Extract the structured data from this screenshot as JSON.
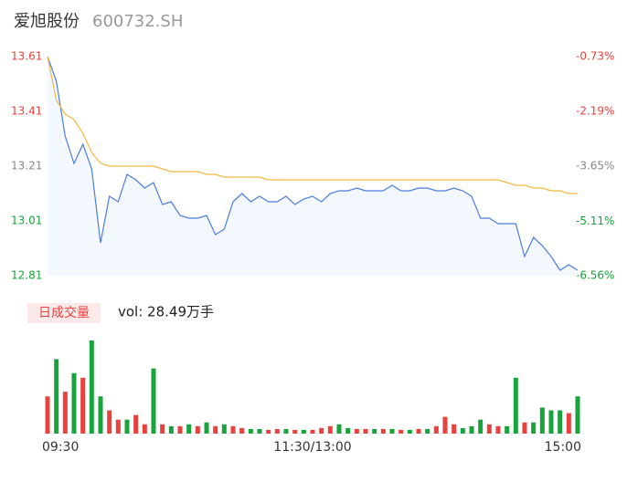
{
  "chart_data": {
    "type": "line",
    "title": "爱旭股份",
    "subtitle": "600732.SH",
    "x": [
      0,
      4,
      8,
      12,
      16,
      20,
      24,
      28,
      32,
      36,
      40,
      44,
      48,
      52,
      56,
      60,
      64,
      68,
      72,
      76,
      80,
      84,
      88,
      92,
      96,
      100,
      104,
      108,
      112,
      116,
      120,
      124,
      128,
      132,
      136,
      140,
      144,
      148,
      152,
      156,
      160,
      164,
      168,
      172,
      176,
      180,
      184,
      188,
      192,
      196,
      200,
      204,
      208,
      212,
      216,
      220,
      224,
      228,
      232,
      236,
      240
    ],
    "xlim": [
      0,
      240
    ],
    "xticks": [
      {
        "value": 0,
        "label": "09:30"
      },
      {
        "value": 120,
        "label": "11:30/13:00"
      },
      {
        "value": 240,
        "label": "15:00"
      }
    ],
    "ylim": [
      12.81,
      13.61
    ],
    "yticks": [
      12.81,
      13.01,
      13.21,
      13.41,
      13.61
    ],
    "ytick_colors": [
      "#18a33c",
      "#18a33c",
      "#888888",
      "#e8423f",
      "#e8423f"
    ],
    "y2lim": [
      -6.56,
      -0.73
    ],
    "y2ticks": [
      {
        "value": -6.56,
        "label": "-6.56%"
      },
      {
        "value": -5.11,
        "label": "-5.11%"
      },
      {
        "value": -3.65,
        "label": "-3.65%"
      },
      {
        "value": -2.19,
        "label": "-2.19%"
      },
      {
        "value": -0.73,
        "label": "-0.73%"
      }
    ],
    "series": [
      {
        "color": "#4a7ee0",
        "values": [
          13.61,
          13.52,
          13.32,
          13.22,
          13.29,
          13.2,
          12.93,
          13.1,
          13.08,
          13.18,
          13.16,
          13.13,
          13.15,
          13.07,
          13.08,
          13.03,
          13.02,
          13.02,
          13.03,
          12.96,
          12.98,
          13.08,
          13.11,
          13.08,
          13.1,
          13.08,
          13.08,
          13.1,
          13.07,
          13.09,
          13.1,
          13.08,
          13.11,
          13.12,
          13.12,
          13.13,
          13.12,
          13.12,
          13.12,
          13.14,
          13.12,
          13.12,
          13.13,
          13.13,
          13.12,
          13.12,
          13.13,
          13.12,
          13.1,
          13.02,
          13.02,
          13.0,
          13.0,
          13.0,
          12.88,
          12.95,
          12.92,
          12.88,
          12.83,
          12.85,
          12.83
        ]
      },
      {
        "color": "#f5b942",
        "values": [
          13.61,
          13.45,
          13.4,
          13.38,
          13.33,
          13.26,
          13.22,
          13.21,
          13.21,
          13.21,
          13.21,
          13.21,
          13.21,
          13.2,
          13.19,
          13.19,
          13.19,
          13.19,
          13.18,
          13.18,
          13.17,
          13.17,
          13.17,
          13.17,
          13.17,
          13.16,
          13.16,
          13.16,
          13.16,
          13.16,
          13.16,
          13.16,
          13.16,
          13.16,
          13.16,
          13.16,
          13.16,
          13.16,
          13.16,
          13.16,
          13.16,
          13.16,
          13.16,
          13.16,
          13.16,
          13.16,
          13.16,
          13.16,
          13.16,
          13.16,
          13.16,
          13.16,
          13.15,
          13.14,
          13.14,
          13.13,
          13.13,
          13.12,
          13.12,
          13.11,
          13.11
        ]
      }
    ],
    "volume": {
      "label": "日成交量",
      "summary": "vol: 28.49万手",
      "ylim": [
        0,
        100
      ],
      "values": [
        40,
        80,
        45,
        65,
        60,
        100,
        40,
        25,
        15,
        15,
        20,
        10,
        70,
        10,
        8,
        8,
        10,
        8,
        12,
        8,
        10,
        8,
        6,
        5,
        5,
        4,
        5,
        5,
        4,
        4,
        4,
        6,
        8,
        10,
        6,
        5,
        5,
        5,
        5,
        5,
        4,
        4,
        5,
        5,
        8,
        18,
        10,
        6,
        8,
        15,
        10,
        8,
        8,
        60,
        12,
        12,
        28,
        25,
        25,
        22,
        40
      ],
      "colors": [
        "#e8423f",
        "#18a33c",
        "#e8423f",
        "#18a33c",
        "#e8423f",
        "#18a33c",
        "#18a33c",
        "#e8423f",
        "#e8423f",
        "#18a33c",
        "#e8423f",
        "#e8423f",
        "#18a33c",
        "#e8423f",
        "#18a33c",
        "#e8423f",
        "#18a33c",
        "#e8423f",
        "#18a33c",
        "#e8423f",
        "#18a33c",
        "#e8423f",
        "#e8423f",
        "#18a33c",
        "#18a33c",
        "#e8423f",
        "#e8423f",
        "#18a33c",
        "#e8423f",
        "#18a33c",
        "#e8423f",
        "#e8423f",
        "#e8423f",
        "#18a33c",
        "#18a33c",
        "#e8423f",
        "#e8423f",
        "#18a33c",
        "#e8423f",
        "#18a33c",
        "#e8423f",
        "#18a33c",
        "#e8423f",
        "#18a33c",
        "#e8423f",
        "#e8423f",
        "#e8423f",
        "#18a33c",
        "#18a33c",
        "#18a33c",
        "#e8423f",
        "#e8423f",
        "#18a33c",
        "#18a33c",
        "#e8423f",
        "#18a33c",
        "#18a33c",
        "#18a33c",
        "#18a33c",
        "#e8423f",
        "#18a33c"
      ]
    }
  }
}
